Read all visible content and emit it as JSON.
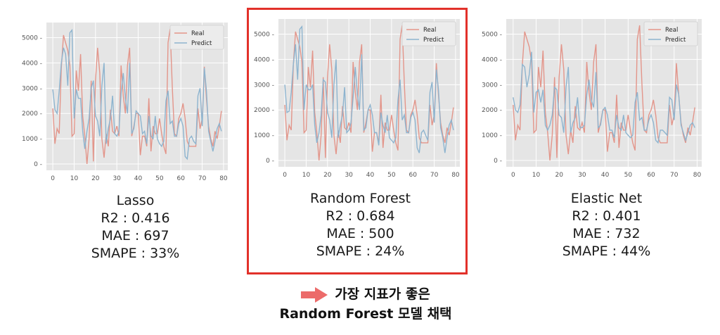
{
  "colors": {
    "real": "#e3958a",
    "predict": "#8db4cf",
    "highlight": "#e2312a",
    "arrow": "#ec6b6a",
    "plot_bg": "#e5e5e5"
  },
  "chart_data": [
    {
      "type": "line",
      "x": [
        0,
        1,
        2,
        3,
        4,
        5,
        6,
        7,
        8,
        9,
        10,
        11,
        12,
        13,
        14,
        15,
        16,
        17,
        18,
        19,
        20,
        21,
        22,
        23,
        24,
        25,
        26,
        27,
        28,
        29,
        30,
        31,
        32,
        33,
        34,
        35,
        36,
        37,
        38,
        39,
        40,
        41,
        42,
        43,
        44,
        45,
        46,
        47,
        48,
        49,
        50,
        51,
        52,
        53,
        54,
        55,
        56,
        57,
        58,
        59,
        60,
        61,
        62,
        63,
        64,
        65,
        66,
        67,
        68,
        69,
        70,
        71,
        72,
        73,
        74,
        75,
        76,
        77,
        78,
        79
      ],
      "series": [
        {
          "name": "Real",
          "values": [
            2200,
            800,
            1400,
            1200,
            3800,
            5100,
            4800,
            4500,
            3900,
            1100,
            1200,
            3700,
            2900,
            4350,
            1900,
            1100,
            0,
            1000,
            3300,
            100,
            3300,
            4600,
            3600,
            1000,
            250,
            1200,
            700,
            2150,
            1300,
            1200,
            1500,
            1100,
            3900,
            2700,
            2000,
            3900,
            4600,
            1100,
            1500,
            2000,
            2000,
            350,
            1100,
            1100,
            700,
            2600,
            500,
            1500,
            1200,
            1200,
            1800,
            1200,
            700,
            400,
            4800,
            5350,
            3000,
            1200,
            1100,
            1800,
            2000,
            2400,
            1800,
            900,
            700,
            700,
            700,
            700,
            2200,
            1400,
            1800,
            3850,
            2600,
            1500,
            1000,
            700,
            1300,
            1000,
            1500,
            2100
          ]
        },
        {
          "name": "Predict",
          "values": [
            2950,
            2150,
            2000,
            2900,
            4000,
            4600,
            4350,
            3100,
            5200,
            5300,
            1800,
            2950,
            2600,
            2600,
            1300,
            600,
            1300,
            1800,
            3000,
            3300,
            1900,
            1700,
            1100,
            3100,
            4000,
            800,
            1400,
            1800,
            2700,
            1200,
            1100,
            1300,
            2800,
            3600,
            2600,
            2000,
            4000,
            1200,
            1400,
            2100,
            2000,
            1900,
            1200,
            1300,
            800,
            1900,
            1100,
            1000,
            1900,
            1000,
            800,
            700,
            900,
            2500,
            2900,
            1600,
            1700,
            1100,
            1100,
            1600,
            1800,
            1500,
            300,
            200,
            1000,
            1100,
            900,
            800,
            2700,
            3000,
            1500,
            3800,
            2900,
            1300,
            900,
            500,
            900,
            1400,
            1600,
            1300
          ]
        }
      ],
      "yticks": [
        0,
        1000,
        2000,
        3000,
        4000,
        5000
      ],
      "xticks": [
        0,
        10,
        20,
        30,
        40,
        50,
        60,
        70,
        80
      ],
      "ylim": [
        -250,
        5600
      ],
      "xlim": [
        -3,
        82
      ],
      "legend": "top-right",
      "title": "Lasso",
      "r2": "R2 : 0.416",
      "mae": "MAE : 697",
      "smape": "SMAPE : 33%"
    },
    {
      "type": "line",
      "x": [
        0,
        1,
        2,
        3,
        4,
        5,
        6,
        7,
        8,
        9,
        10,
        11,
        12,
        13,
        14,
        15,
        16,
        17,
        18,
        19,
        20,
        21,
        22,
        23,
        24,
        25,
        26,
        27,
        28,
        29,
        30,
        31,
        32,
        33,
        34,
        35,
        36,
        37,
        38,
        39,
        40,
        41,
        42,
        43,
        44,
        45,
        46,
        47,
        48,
        49,
        50,
        51,
        52,
        53,
        54,
        55,
        56,
        57,
        58,
        59,
        60,
        61,
        62,
        63,
        64,
        65,
        66,
        67,
        68,
        69,
        70,
        71,
        72,
        73,
        74,
        75,
        76,
        77,
        78,
        79
      ],
      "series": [
        {
          "name": "Real",
          "values": [
            2200,
            800,
            1400,
            1200,
            3800,
            5100,
            4800,
            4500,
            3900,
            1100,
            1200,
            3700,
            2900,
            4350,
            1900,
            1100,
            0,
            1000,
            3300,
            100,
            3300,
            4600,
            3600,
            1000,
            250,
            1200,
            700,
            2150,
            1300,
            1200,
            1500,
            1100,
            3900,
            2700,
            2000,
            3900,
            4600,
            1100,
            1500,
            2000,
            2000,
            350,
            1100,
            1100,
            700,
            2600,
            500,
            1500,
            1200,
            1200,
            1800,
            1200,
            700,
            400,
            4800,
            5350,
            3000,
            1200,
            1100,
            1800,
            2000,
            2400,
            1800,
            900,
            700,
            700,
            700,
            700,
            2200,
            1400,
            1800,
            3850,
            2600,
            1500,
            1000,
            700,
            1300,
            1000,
            1500,
            2100
          ]
        },
        {
          "name": "Predict",
          "values": [
            3000,
            1900,
            1950,
            2700,
            3800,
            4600,
            3200,
            5200,
            5300,
            2000,
            3000,
            2800,
            2800,
            3000,
            1400,
            700,
            1100,
            1800,
            3200,
            3100,
            1900,
            1600,
            900,
            3000,
            4000,
            900,
            1400,
            1800,
            2900,
            1100,
            1200,
            1500,
            2500,
            3700,
            2600,
            2000,
            4200,
            1200,
            1300,
            2000,
            2200,
            1800,
            1100,
            1100,
            600,
            1900,
            1400,
            1100,
            1800,
            900,
            800,
            700,
            900,
            2400,
            3200,
            1600,
            1800,
            1100,
            1100,
            1700,
            1900,
            1600,
            500,
            300,
            1100,
            1200,
            1000,
            800,
            2700,
            3100,
            1500,
            3600,
            2800,
            1300,
            900,
            300,
            900,
            1400,
            1600,
            1200
          ]
        }
      ],
      "yticks": [
        0,
        1000,
        2000,
        3000,
        4000,
        5000
      ],
      "xticks": [
        0,
        10,
        20,
        30,
        40,
        50,
        60,
        70,
        80
      ],
      "ylim": [
        -250,
        5600
      ],
      "xlim": [
        -3,
        82
      ],
      "legend": "top-right",
      "title": "Random Forest",
      "r2": "R2 : 0.684",
      "mae": "MAE : 500",
      "smape": "SMAPE : 24%"
    },
    {
      "type": "line",
      "x": [
        0,
        1,
        2,
        3,
        4,
        5,
        6,
        7,
        8,
        9,
        10,
        11,
        12,
        13,
        14,
        15,
        16,
        17,
        18,
        19,
        20,
        21,
        22,
        23,
        24,
        25,
        26,
        27,
        28,
        29,
        30,
        31,
        32,
        33,
        34,
        35,
        36,
        37,
        38,
        39,
        40,
        41,
        42,
        43,
        44,
        45,
        46,
        47,
        48,
        49,
        50,
        51,
        52,
        53,
        54,
        55,
        56,
        57,
        58,
        59,
        60,
        61,
        62,
        63,
        64,
        65,
        66,
        67,
        68,
        69,
        70,
        71,
        72,
        73,
        74,
        75,
        76,
        77,
        78,
        79
      ],
      "series": [
        {
          "name": "Real",
          "values": [
            2200,
            800,
            1400,
            1200,
            3800,
            5100,
            4800,
            4500,
            3900,
            1100,
            1200,
            3700,
            2900,
            4350,
            1900,
            1100,
            0,
            1000,
            3300,
            100,
            3300,
            4600,
            3600,
            1000,
            250,
            1200,
            700,
            2150,
            1300,
            1200,
            1500,
            1100,
            3900,
            2700,
            2000,
            3900,
            4600,
            1100,
            1500,
            2000,
            2000,
            350,
            1100,
            1100,
            700,
            2600,
            500,
            1500,
            1200,
            1200,
            1800,
            1200,
            700,
            400,
            4800,
            5350,
            3000,
            1200,
            1100,
            1800,
            2000,
            2400,
            1800,
            900,
            700,
            700,
            700,
            700,
            2200,
            1400,
            1800,
            3850,
            2600,
            1500,
            1000,
            700,
            1300,
            1000,
            1500,
            2100
          ]
        },
        {
          "name": "Predict",
          "values": [
            2500,
            2000,
            1900,
            2200,
            3800,
            3700,
            2900,
            3400,
            4300,
            1900,
            2700,
            2800,
            2300,
            2800,
            1400,
            1200,
            1400,
            1800,
            2900,
            2800,
            1800,
            1700,
            1100,
            2900,
            3700,
            1100,
            1500,
            1700,
            2500,
            1300,
            1300,
            1400,
            2600,
            3200,
            2400,
            2100,
            3500,
            1300,
            1400,
            2000,
            2100,
            1800,
            1200,
            1200,
            900,
            1800,
            1300,
            1200,
            1800,
            1100,
            1000,
            900,
            1000,
            2300,
            2700,
            1600,
            1700,
            1200,
            1200,
            1600,
            1800,
            1500,
            800,
            700,
            1200,
            1200,
            1100,
            1000,
            2500,
            2400,
            1600,
            3000,
            2600,
            1400,
            1100,
            800,
            1100,
            1400,
            1500,
            1300
          ]
        }
      ],
      "yticks": [
        0,
        1000,
        2000,
        3000,
        4000,
        5000
      ],
      "xticks": [
        0,
        10,
        20,
        30,
        40,
        50,
        60,
        70,
        80
      ],
      "ylim": [
        -250,
        5600
      ],
      "xlim": [
        -3,
        82
      ],
      "legend": "top-right",
      "title": "Elastic Net",
      "r2": "R2 : 0.401",
      "mae": "MAE : 732",
      "smape": "SMAPE : 44%"
    }
  ],
  "conclusion": {
    "line1": "가장 지표가 좋은",
    "line2": "Random Forest 모델 채택",
    "arrow_icon": "right-arrow-icon"
  }
}
